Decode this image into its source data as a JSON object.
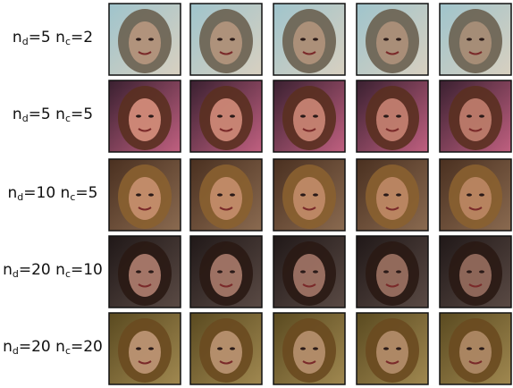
{
  "rows": [
    {
      "label": [
        "n",
        "d",
        "=5 n",
        "c",
        "=2"
      ]
    },
    {
      "label": [
        "n",
        "d",
        "=5 n",
        "c",
        "=5"
      ]
    },
    {
      "label": [
        "n",
        "d",
        "=10 n",
        "c",
        "=5"
      ]
    },
    {
      "label": [
        "n",
        "d",
        "=20 n",
        "c",
        "=10"
      ]
    },
    {
      "label": [
        "n",
        "d",
        "=20 n",
        "c",
        "=20"
      ]
    }
  ]
}
